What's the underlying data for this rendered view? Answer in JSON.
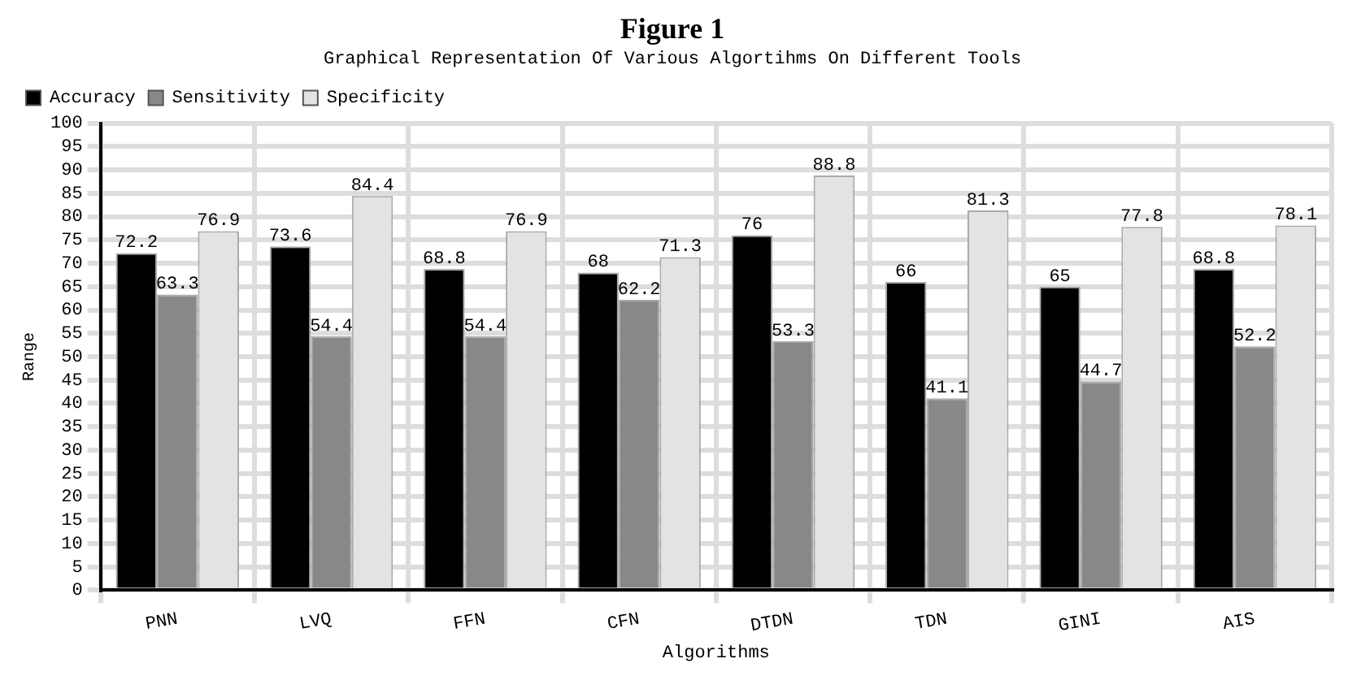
{
  "chart_data": {
    "type": "bar",
    "title": "Figure 1",
    "subtitle": "Graphical Representation Of Various Algortihms On Different Tools",
    "xlabel": "Algorithms",
    "ylabel": "Range",
    "categories": [
      "PNN",
      "LVQ",
      "FFN",
      "CFN",
      "DTDN",
      "TDN",
      "GINI",
      "AIS"
    ],
    "series": [
      {
        "name": "Accuracy",
        "color": "#000000",
        "values": [
          72.2,
          73.6,
          68.8,
          68,
          76,
          66,
          65,
          68.8
        ]
      },
      {
        "name": "Sensitivity",
        "color": "#888888",
        "values": [
          63.3,
          54.4,
          54.4,
          62.2,
          53.3,
          41.1,
          44.7,
          52.2
        ]
      },
      {
        "name": "Specificity",
        "color": "#e3e3e3",
        "values": [
          76.9,
          84.4,
          76.9,
          71.3,
          88.8,
          81.3,
          77.8,
          78.1
        ]
      }
    ],
    "ylim": [
      0,
      100
    ],
    "yticks": [
      0,
      5,
      10,
      15,
      20,
      25,
      30,
      35,
      40,
      45,
      50,
      55,
      60,
      65,
      70,
      75,
      80,
      85,
      90,
      95,
      100
    ],
    "grid": true,
    "legend": "top left",
    "data_labels": true
  }
}
